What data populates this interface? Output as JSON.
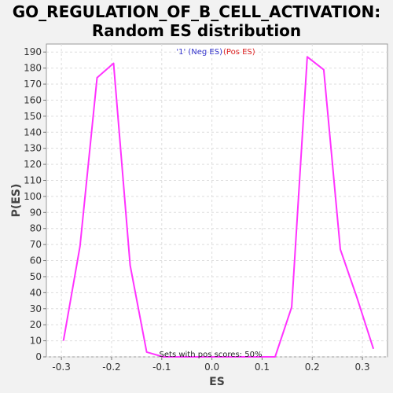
{
  "chart_data": {
    "type": "line",
    "title_lines": [
      "GO_REGULATION_OF_B_CELL_ACTIVATION:",
      "Random ES distribution"
    ],
    "xlabel": "ES",
    "ylabel": "P(ES)",
    "xlim": [
      -0.33,
      0.35
    ],
    "ylim": [
      0,
      195
    ],
    "x_ticks": [
      -0.3,
      -0.2,
      -0.1,
      0.0,
      0.1,
      0.2,
      0.3
    ],
    "x_tick_labels": [
      "-0.3",
      "-0.2",
      "-0.1",
      "0.0",
      "0.1",
      "0.2",
      "0.3"
    ],
    "y_ticks": [
      0,
      10,
      20,
      30,
      40,
      50,
      60,
      70,
      80,
      90,
      100,
      110,
      120,
      130,
      140,
      150,
      160,
      170,
      180,
      190
    ],
    "y_tick_labels": [
      "0",
      "10",
      "20",
      "30",
      "40",
      "50",
      "60",
      "70",
      "80",
      "90",
      "100",
      "110",
      "120",
      "130",
      "140",
      "150",
      "160",
      "170",
      "180",
      "190"
    ],
    "grid": true,
    "legend": {
      "placement": "top-center",
      "entries": [
        {
          "text": "'1' (Neg ES)",
          "color": "#3333cc"
        },
        {
          "text": "(Pos ES)",
          "color": "#dd2222"
        }
      ]
    },
    "annotation": "Sets with pos scores: 50%",
    "series": [
      {
        "color": "#ff33ff",
        "x": [
          -0.296,
          -0.263,
          -0.229,
          -0.196,
          -0.163,
          -0.13,
          -0.097,
          -0.064,
          0.002,
          0.035,
          0.068,
          0.101,
          0.126,
          0.159,
          0.19,
          0.223,
          0.256,
          0.289,
          0.322
        ],
        "y": [
          10,
          69,
          174,
          183,
          57,
          3,
          0,
          0,
          0,
          0,
          0,
          0,
          0,
          31,
          187,
          179,
          67,
          37,
          5
        ]
      }
    ]
  }
}
